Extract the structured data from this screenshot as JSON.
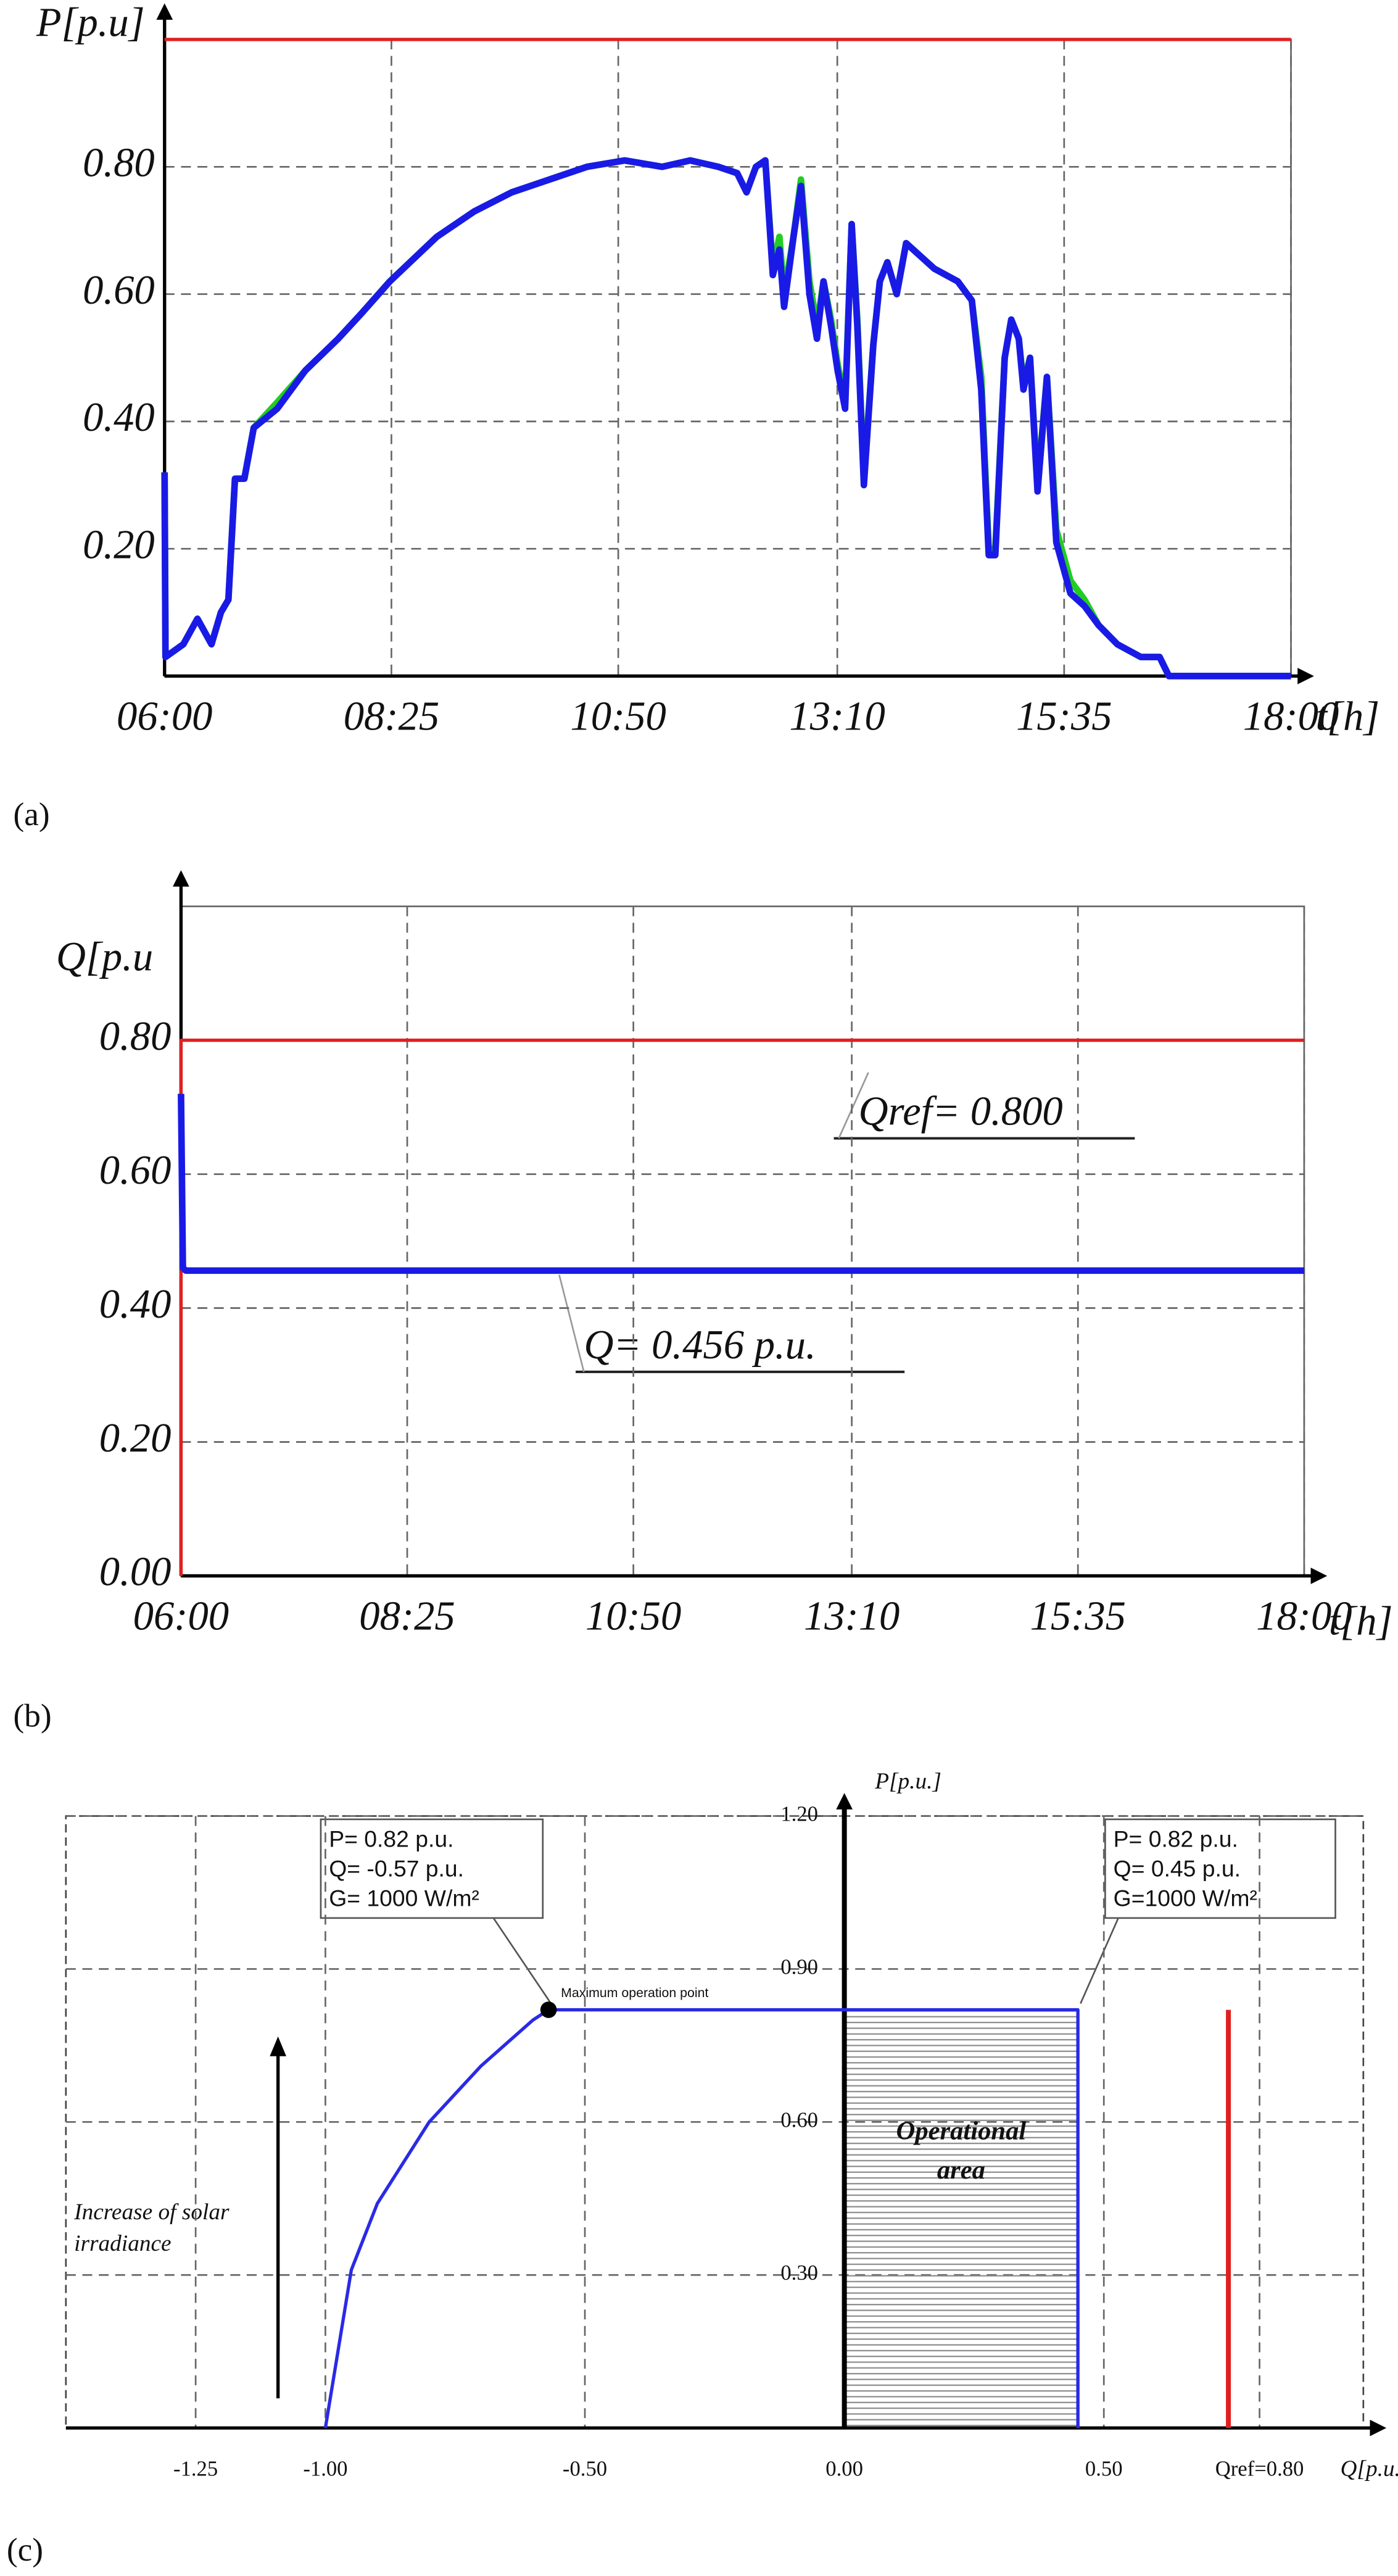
{
  "panel_labels": [
    "(a)",
    "(b)",
    "(c)"
  ],
  "chart_data": [
    {
      "type": "line",
      "ylabel": "P[p.u]",
      "xlabel": "t[h]",
      "grid": true,
      "x": [
        6.0,
        6.01,
        6.2,
        6.35,
        6.5,
        6.6,
        6.68,
        6.75,
        6.85,
        6.95,
        7.2,
        7.5,
        7.85,
        8.1,
        8.4,
        8.9,
        9.3,
        9.7,
        10.1,
        10.5,
        10.9,
        11.3,
        11.6,
        11.9,
        12.1,
        12.2,
        12.3,
        12.4,
        12.48,
        12.55,
        12.6,
        12.7,
        12.78,
        12.87,
        12.95,
        13.02,
        13.1,
        13.17,
        13.25,
        13.32,
        13.38,
        13.45,
        13.55,
        13.62,
        13.7,
        13.8,
        13.9,
        14.2,
        14.45,
        14.6,
        14.7,
        14.78,
        14.85,
        14.95,
        15.02,
        15.1,
        15.15,
        15.22,
        15.3,
        15.4,
        15.5,
        15.65,
        15.8,
        15.95,
        16.15,
        16.4,
        16.6,
        16.7,
        18.0
      ],
      "xlim": [
        6,
        18
      ],
      "ylim": [
        0,
        1.0
      ],
      "xticks": [
        {
          "value": 6,
          "label": "06:00"
        },
        {
          "value": 8.4167,
          "label": "08:25"
        },
        {
          "value": 10.8333,
          "label": "10:50"
        },
        {
          "value": 13.1667,
          "label": "13:10"
        },
        {
          "value": 15.5833,
          "label": "15:35"
        },
        {
          "value": 18,
          "label": "18:00"
        }
      ],
      "yticks": [
        {
          "value": 0.2,
          "label": "0.20"
        },
        {
          "value": 0.4,
          "label": "0.40"
        },
        {
          "value": 0.6,
          "label": "0.60"
        },
        {
          "value": 0.8,
          "label": "0.80"
        }
      ],
      "series": [
        {
          "color": "#22cc22",
          "values": [
            0.32,
            0.03,
            0.05,
            0.09,
            0.05,
            0.1,
            0.12,
            0.31,
            0.31,
            0.39,
            0.43,
            0.48,
            0.53,
            0.57,
            0.62,
            0.69,
            0.73,
            0.76,
            0.78,
            0.8,
            0.81,
            0.8,
            0.81,
            0.8,
            0.79,
            0.76,
            0.8,
            0.81,
            0.64,
            0.69,
            0.6,
            0.69,
            0.78,
            0.62,
            0.55,
            0.62,
            0.56,
            0.49,
            0.43,
            0.71,
            0.56,
            0.31,
            0.52,
            0.62,
            0.65,
            0.6,
            0.68,
            0.64,
            0.62,
            0.59,
            0.47,
            0.2,
            0.2,
            0.5,
            0.56,
            0.53,
            0.46,
            0.5,
            0.3,
            0.47,
            0.23,
            0.15,
            0.12,
            0.08,
            0.05,
            0.03,
            0.03,
            0.0,
            0.0
          ]
        },
        {
          "color": "#1a1ae6",
          "values": [
            0.32,
            0.03,
            0.05,
            0.09,
            0.05,
            0.1,
            0.12,
            0.31,
            0.31,
            0.39,
            0.42,
            0.48,
            0.53,
            0.57,
            0.62,
            0.69,
            0.73,
            0.76,
            0.78,
            0.8,
            0.81,
            0.8,
            0.81,
            0.8,
            0.79,
            0.76,
            0.8,
            0.81,
            0.63,
            0.67,
            0.58,
            0.69,
            0.77,
            0.6,
            0.53,
            0.62,
            0.55,
            0.48,
            0.42,
            0.71,
            0.55,
            0.3,
            0.52,
            0.62,
            0.65,
            0.6,
            0.68,
            0.64,
            0.62,
            0.59,
            0.45,
            0.19,
            0.19,
            0.5,
            0.56,
            0.53,
            0.45,
            0.5,
            0.29,
            0.47,
            0.21,
            0.13,
            0.11,
            0.08,
            0.05,
            0.03,
            0.03,
            0.0,
            0.0
          ]
        },
        {
          "color": "#e02020",
          "x": [
            6,
            18
          ],
          "values": [
            1.0,
            1.0
          ]
        }
      ]
    },
    {
      "type": "line",
      "ylabel": "Q[p.u",
      "xlabel": "t[h]",
      "grid": true,
      "xlim": [
        6,
        18
      ],
      "ylim": [
        0,
        1.0
      ],
      "xticks": [
        {
          "value": 6,
          "label": "06:00"
        },
        {
          "value": 8.4167,
          "label": "08:25"
        },
        {
          "value": 10.8333,
          "label": "10:50"
        },
        {
          "value": 13.1667,
          "label": "13:10"
        },
        {
          "value": 15.5833,
          "label": "15:35"
        },
        {
          "value": 18,
          "label": "18:00"
        }
      ],
      "yticks": [
        {
          "value": 0,
          "label": "0.00"
        },
        {
          "value": 0.2,
          "label": "0.20"
        },
        {
          "value": 0.4,
          "label": "0.40"
        },
        {
          "value": 0.6,
          "label": "0.60"
        },
        {
          "value": 0.8,
          "label": "0.80"
        }
      ],
      "series": [
        {
          "color": "#e02020",
          "x": [
            6,
            6,
            18
          ],
          "values": [
            0,
            0.8,
            0.8
          ]
        },
        {
          "color": "#1a1ae6",
          "x": [
            6,
            6.02,
            6.05,
            18
          ],
          "values": [
            0.72,
            0.46,
            0.456,
            0.456
          ]
        }
      ],
      "annotations": [
        "Qref= 0.800",
        "Q= 0.456 p.u."
      ]
    },
    {
      "type": "line",
      "ylabel": "P[p.u.]",
      "xlabel": "Q[p.u.]",
      "grid": true,
      "xlim": [
        -1.5,
        1.0
      ],
      "ylim": [
        0,
        1.2
      ],
      "xticks": [
        {
          "value": -1.25,
          "label": "-1.25"
        },
        {
          "value": -1,
          "label": "-1.00"
        },
        {
          "value": -0.5,
          "label": "-0.50"
        },
        {
          "value": 0,
          "label": "0.00"
        },
        {
          "value": 0.5,
          "label": "0.50"
        },
        {
          "value": 0.8,
          "label": "Qref=0.80"
        }
      ],
      "yticks": [
        {
          "value": 0.3,
          "label": "0.30"
        },
        {
          "value": 0.6,
          "label": "0.60"
        },
        {
          "value": 0.9,
          "label": "0.90"
        },
        {
          "value": 1.2,
          "label": "1.20"
        }
      ],
      "series": [
        {
          "color": "#2a2ae6",
          "x": [
            -1,
            -0.95,
            -0.9,
            -0.8,
            -0.7,
            -0.6,
            -0.57,
            0.45,
            0.45
          ],
          "values": [
            0,
            0.31,
            0.44,
            0.6,
            0.71,
            0.8,
            0.82,
            0.82,
            0
          ]
        },
        {
          "color": "#e02020",
          "x": [
            0.74,
            0.74
          ],
          "values": [
            0,
            0.82
          ]
        }
      ],
      "marker": {
        "x": -0.57,
        "y": 0.82
      },
      "area_label": [
        "Operational",
        "area"
      ],
      "annotations": {
        "left": [
          "P= 0.82 p.u.",
          "Q= -0.57 p.u.",
          "G= 1000 W/m²"
        ],
        "right": [
          "P= 0.82 p.u.",
          "Q= 0.45 p.u.",
          "G=1000 W/m²"
        ],
        "point": "Maximum operation point",
        "increase": [
          "Increase of solar",
          "irradiance"
        ]
      }
    }
  ]
}
